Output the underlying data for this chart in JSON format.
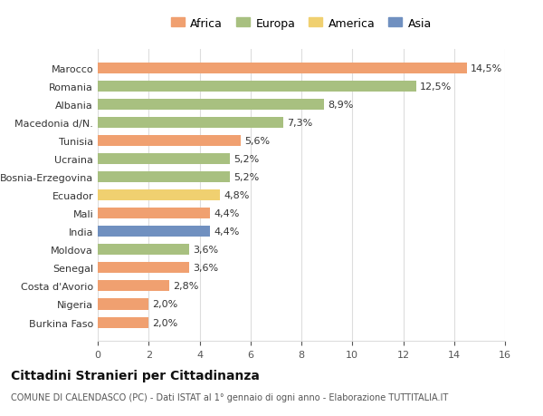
{
  "categories": [
    "Burkina Faso",
    "Nigeria",
    "Costa d'Avorio",
    "Senegal",
    "Moldova",
    "India",
    "Mali",
    "Ecuador",
    "Bosnia-Erzegovina",
    "Ucraina",
    "Tunisia",
    "Macedonia d/N.",
    "Albania",
    "Romania",
    "Marocco"
  ],
  "values": [
    2.0,
    2.0,
    2.8,
    3.6,
    3.6,
    4.4,
    4.4,
    4.8,
    5.2,
    5.2,
    5.6,
    7.3,
    8.9,
    12.5,
    14.5
  ],
  "continents": [
    "Africa",
    "Africa",
    "Africa",
    "Africa",
    "Europa",
    "Asia",
    "Africa",
    "America",
    "Europa",
    "Europa",
    "Africa",
    "Europa",
    "Europa",
    "Europa",
    "Africa"
  ],
  "colors": {
    "Africa": "#F0A070",
    "Europa": "#A8C080",
    "America": "#F0D070",
    "Asia": "#7090C0"
  },
  "labels": [
    "2,0%",
    "2,0%",
    "2,8%",
    "3,6%",
    "3,6%",
    "4,4%",
    "4,4%",
    "4,8%",
    "5,2%",
    "5,2%",
    "5,6%",
    "7,3%",
    "8,9%",
    "12,5%",
    "14,5%"
  ],
  "xlim": [
    0,
    16
  ],
  "xticks": [
    0,
    2,
    4,
    6,
    8,
    10,
    12,
    14,
    16
  ],
  "title": "Cittadini Stranieri per Cittadinanza",
  "subtitle": "COMUNE DI CALENDASCO (PC) - Dati ISTAT al 1° gennaio di ogni anno - Elaborazione TUTTITALIA.IT",
  "legend_order": [
    "Africa",
    "Europa",
    "America",
    "Asia"
  ],
  "background_color": "#ffffff",
  "grid_color": "#dddddd"
}
